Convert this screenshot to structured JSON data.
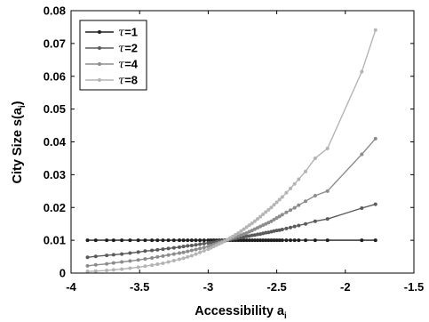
{
  "chart_data": {
    "type": "line",
    "xlabel": "Accessibility a",
    "xlabel_sub": "i",
    "ylabel": "City Size s(a",
    "ylabel_sub": "i",
    "ylabel_end": ")",
    "xlim": [
      -4,
      -1.5
    ],
    "ylim": [
      0,
      0.08
    ],
    "xticks": [
      -4,
      -3.5,
      -3,
      -2.5,
      -2,
      -1.5
    ],
    "yticks": [
      0,
      0.01,
      0.02,
      0.03,
      0.04,
      0.05,
      0.06,
      0.07,
      0.08
    ],
    "xtick_labels": [
      "-4",
      "-3.5",
      "-3",
      "-2.5",
      "-2",
      "-1.5"
    ],
    "ytick_labels": [
      "0",
      "0.01",
      "0.02",
      "0.03",
      "0.04",
      "0.05",
      "0.06",
      "0.07",
      "0.08"
    ],
    "legend_position": "top-left",
    "grid": false,
    "x": [
      -3.88,
      -3.82,
      -3.74,
      -3.69,
      -3.63,
      -3.57,
      -3.51,
      -3.46,
      -3.41,
      -3.37,
      -3.33,
      -3.29,
      -3.25,
      -3.21,
      -3.18,
      -3.15,
      -3.12,
      -3.09,
      -3.06,
      -3.03,
      -3.0,
      -2.98,
      -2.96,
      -2.94,
      -2.92,
      -2.9,
      -2.88,
      -2.86,
      -2.84,
      -2.82,
      -2.8,
      -2.78,
      -2.76,
      -2.74,
      -2.72,
      -2.7,
      -2.68,
      -2.66,
      -2.64,
      -2.62,
      -2.6,
      -2.58,
      -2.56,
      -2.54,
      -2.52,
      -2.5,
      -2.48,
      -2.46,
      -2.43,
      -2.4,
      -2.37,
      -2.34,
      -2.29,
      -2.22,
      -2.13,
      -1.88,
      -1.78
    ],
    "series": [
      {
        "name_prefix": "τ",
        "name_value": "=1",
        "color": "#1e1e1e",
        "values": [
          0.01,
          0.01,
          0.01,
          0.01,
          0.01,
          0.01,
          0.01,
          0.01,
          0.01,
          0.01,
          0.01,
          0.01,
          0.01,
          0.01,
          0.01,
          0.01,
          0.01,
          0.01,
          0.01,
          0.01,
          0.01,
          0.01,
          0.01,
          0.01,
          0.01,
          0.01,
          0.01,
          0.01,
          0.01,
          0.01,
          0.01,
          0.01,
          0.01,
          0.01,
          0.01,
          0.01,
          0.01,
          0.01,
          0.01,
          0.01,
          0.01,
          0.01,
          0.01,
          0.01,
          0.01,
          0.01,
          0.01,
          0.01,
          0.01,
          0.01,
          0.01,
          0.01,
          0.01,
          0.01,
          0.01,
          0.01,
          0.01
        ]
      },
      {
        "name_prefix": "τ",
        "name_value": "=2",
        "color": "#5a5a5a",
        "values": [
          0.0048,
          0.0051,
          0.0054,
          0.0056,
          0.0058,
          0.0061,
          0.0064,
          0.0067,
          0.0069,
          0.0071,
          0.0073,
          0.0075,
          0.0077,
          0.0079,
          0.0081,
          0.0083,
          0.0084,
          0.0086,
          0.0088,
          0.009,
          0.0092,
          0.0093,
          0.0094,
          0.0096,
          0.0097,
          0.0098,
          0.01,
          0.0101,
          0.0102,
          0.0104,
          0.0105,
          0.0107,
          0.0108,
          0.011,
          0.0112,
          0.0113,
          0.0115,
          0.0116,
          0.0118,
          0.0119,
          0.0121,
          0.0123,
          0.0124,
          0.0126,
          0.0128,
          0.013,
          0.0131,
          0.0133,
          0.0136,
          0.0139,
          0.0142,
          0.0145,
          0.015,
          0.0158,
          0.0165,
          0.0198,
          0.021
        ]
      },
      {
        "name_prefix": "τ",
        "name_value": "=4",
        "color": "#8c8c8c",
        "values": [
          0.0022,
          0.0025,
          0.0028,
          0.0031,
          0.0034,
          0.0037,
          0.004,
          0.0043,
          0.0046,
          0.0049,
          0.0052,
          0.0055,
          0.0058,
          0.0061,
          0.0063,
          0.0066,
          0.0069,
          0.0072,
          0.0075,
          0.0078,
          0.0081,
          0.0084,
          0.0087,
          0.009,
          0.0093,
          0.0095,
          0.0098,
          0.0101,
          0.0104,
          0.0107,
          0.011,
          0.0113,
          0.0116,
          0.0119,
          0.0122,
          0.0126,
          0.013,
          0.0134,
          0.0138,
          0.0142,
          0.0146,
          0.015,
          0.0154,
          0.0158,
          0.0163,
          0.0168,
          0.0173,
          0.0178,
          0.0185,
          0.0192,
          0.0199,
          0.0207,
          0.0219,
          0.0236,
          0.025,
          0.0362,
          0.041
        ]
      },
      {
        "name_prefix": "τ",
        "name_value": "=8",
        "color": "#b4b4b4",
        "values": [
          0.0005,
          0.0006,
          0.0008,
          0.001,
          0.0012,
          0.0015,
          0.0018,
          0.0021,
          0.0024,
          0.0027,
          0.003,
          0.0034,
          0.0038,
          0.0042,
          0.0045,
          0.0049,
          0.0053,
          0.0058,
          0.0063,
          0.0068,
          0.0073,
          0.0077,
          0.0081,
          0.0085,
          0.0089,
          0.0093,
          0.0097,
          0.0102,
          0.0107,
          0.0112,
          0.0117,
          0.0122,
          0.0128,
          0.0134,
          0.014,
          0.0146,
          0.0152,
          0.0158,
          0.0165,
          0.0172,
          0.0179,
          0.0186,
          0.0193,
          0.02,
          0.0208,
          0.0216,
          0.0224,
          0.0232,
          0.0245,
          0.0258,
          0.0272,
          0.0286,
          0.031,
          0.035,
          0.038,
          0.0614,
          0.0741
        ]
      }
    ]
  }
}
